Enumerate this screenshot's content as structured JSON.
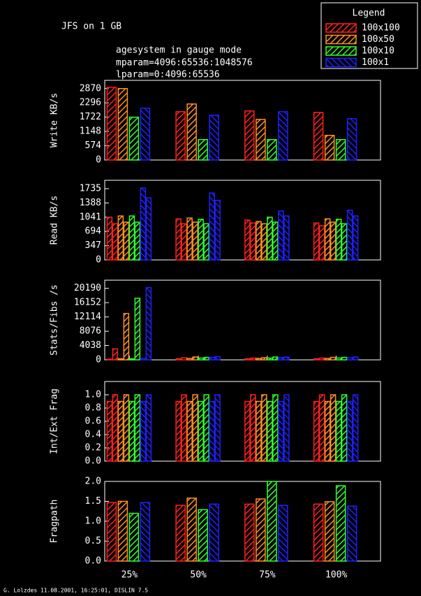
{
  "title": "JFS on 1 GB",
  "subtitle_lines": [
    "agesystem in gauge mode",
    "mparam=4096:65536:1048576",
    "lparam=0:4096:65536"
  ],
  "footer": "G. Lolzdes 11.08.2001, 16:25:01, DISLIN 7.5",
  "legend": {
    "title": "Legend",
    "series": [
      {
        "name": "100x100",
        "color": "#ff2020"
      },
      {
        "name": "100x50",
        "color": "#ff9020"
      },
      {
        "name": "100x10",
        "color": "#30ff30"
      },
      {
        "name": "100x1",
        "color": "#2020ff"
      }
    ]
  },
  "categories": [
    "25%",
    "50%",
    "75%",
    "100%"
  ],
  "chart_data": [
    {
      "type": "bar",
      "ylabel": "Write KB/s",
      "ylim": [
        0,
        3200
      ],
      "yticks": [
        0,
        574,
        1148,
        1722,
        2296,
        2870
      ],
      "series": [
        {
          "values": [
            2920,
            1940,
            1970,
            1910
          ]
        },
        {
          "values": [
            2870,
            2250,
            1630,
            990
          ]
        },
        {
          "values": [
            1720,
            820,
            820,
            820
          ]
        },
        {
          "values": [
            2080,
            1800,
            1940,
            1660
          ]
        }
      ]
    },
    {
      "type": "bar",
      "ylabel": "Read KB/s",
      "ylim": [
        0,
        1940
      ],
      "yticks": [
        0,
        347,
        694,
        1041,
        1388,
        1735
      ],
      "series": [
        {
          "values": [
            1040,
            1000,
            970,
            900
          ],
          "values2": [
            880,
            880,
            900,
            830
          ]
        },
        {
          "values": [
            1070,
            1020,
            935,
            1000
          ],
          "values2": [
            920,
            920,
            880,
            920
          ]
        },
        {
          "values": [
            1070,
            990,
            1040,
            990
          ],
          "values2": [
            920,
            880,
            920,
            880
          ]
        },
        {
          "values": [
            1750,
            1630,
            1190,
            1210
          ],
          "values2": [
            1510,
            1450,
            1070,
            1070
          ]
        }
      ]
    },
    {
      "type": "bar",
      "ylabel": "Stats/Fibs /s",
      "ylim": [
        0,
        22500
      ],
      "yticks": [
        0,
        4038,
        8076,
        12114,
        16152,
        20190
      ],
      "series": [
        {
          "values": [
            200,
            300,
            300,
            300
          ],
          "values2": [
            3100,
            600,
            500,
            500
          ]
        },
        {
          "values": [
            300,
            400,
            400,
            400
          ],
          "values2": [
            13100,
            800,
            600,
            700
          ]
        },
        {
          "values": [
            300,
            500,
            500,
            500
          ],
          "values2": [
            17400,
            700,
            800,
            700
          ]
        },
        {
          "values": [
            400,
            700,
            600,
            600
          ],
          "values2": [
            20400,
            900,
            800,
            800
          ]
        }
      ]
    },
    {
      "type": "bar",
      "ylabel": "Int/Ext Frag",
      "ylim": [
        0,
        1.2
      ],
      "yticks": [
        {
          "value": 0,
          "label": "0.0"
        },
        0.2,
        0.4,
        0.6,
        0.8,
        {
          "value": 1,
          "label": "1.0"
        }
      ],
      "series": [
        {
          "values": [
            0.9,
            0.9,
            0.9,
            0.9
          ],
          "values2": [
            1,
            1,
            1,
            1
          ]
        },
        {
          "values": [
            0.9,
            0.9,
            0.9,
            0.9
          ],
          "values2": [
            1,
            1,
            1,
            1
          ]
        },
        {
          "values": [
            0.9,
            0.9,
            0.9,
            0.9
          ],
          "values2": [
            1,
            1,
            1,
            1
          ]
        },
        {
          "values": [
            0.9,
            0.9,
            0.9,
            0.9
          ],
          "values2": [
            1,
            1,
            1,
            1
          ]
        }
      ]
    },
    {
      "type": "bar",
      "ylabel": "Fragpath",
      "ylim": [
        0,
        2
      ],
      "yticks": [
        {
          "value": 0,
          "label": "0.0"
        },
        0.5,
        {
          "value": 1,
          "label": "1.0"
        },
        1.5,
        {
          "value": 2,
          "label": "2.0"
        }
      ],
      "series": [
        {
          "values": [
            1.47,
            1.4,
            1.43,
            1.43
          ]
        },
        {
          "values": [
            1.5,
            1.58,
            1.56,
            1.49
          ]
        },
        {
          "values": [
            1.2,
            1.29,
            2,
            1.89
          ]
        },
        {
          "values": [
            1.47,
            1.43,
            1.4,
            1.38
          ]
        }
      ]
    }
  ]
}
